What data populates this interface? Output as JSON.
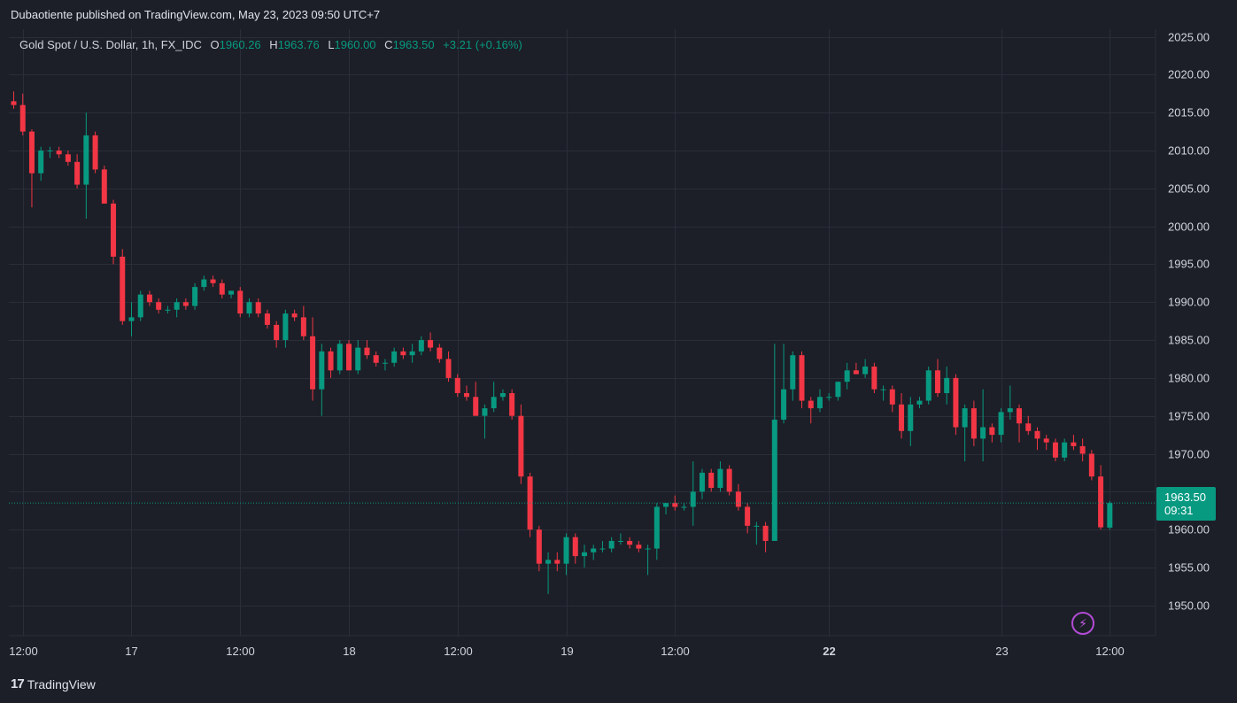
{
  "header": {
    "publisher": "Dubaotiente published on TradingView.com, May 23, 2023 09:50 UTC+7"
  },
  "legend": {
    "symbol": "Gold Spot / U.S. Dollar, 1h, FX_IDC",
    "o_label": "O",
    "o_value": "1960.26",
    "h_label": "H",
    "h_value": "1963.76",
    "l_label": "L",
    "l_value": "1960.00",
    "c_label": "C",
    "c_value": "1963.50",
    "change": "+3.21 (+0.16%)"
  },
  "price_tag": {
    "price": "1963.50",
    "countdown": "09:31"
  },
  "brand": {
    "logo": "17",
    "name": "TradingView"
  },
  "bolt_icon": "lightning-icon",
  "colors": {
    "background": "#1c1f27",
    "grid": "#2a2e39",
    "up": "#089981",
    "down": "#f23645",
    "text": "#d1d4dc"
  },
  "chart_data": {
    "type": "candlestick",
    "ylim": [
      1946,
      2026
    ],
    "y_ticks": [
      2025,
      2020,
      2015,
      2010,
      2005,
      2000,
      1995,
      1990,
      1985,
      1980,
      1975,
      1970,
      1965,
      1960,
      1955,
      1950
    ],
    "y_tick_labels": [
      "2025.00",
      "2020.00",
      "2015.00",
      "2010.00",
      "2005.00",
      "2000.00",
      "1995.00",
      "1990.00",
      "1985.00",
      "1980.00",
      "1975.00",
      "1970.00",
      "1965.00",
      "1960.00",
      "1955.00",
      "1950.00"
    ],
    "x_ticks": [
      {
        "index": 1,
        "label": "12:00",
        "bold": false
      },
      {
        "index": 13,
        "label": "17",
        "bold": false
      },
      {
        "index": 25,
        "label": "12:00",
        "bold": false
      },
      {
        "index": 37,
        "label": "18",
        "bold": false
      },
      {
        "index": 49,
        "label": "12:00",
        "bold": false
      },
      {
        "index": 61,
        "label": "19",
        "bold": false
      },
      {
        "index": 73,
        "label": "12:00",
        "bold": false
      },
      {
        "index": 90,
        "label": "22",
        "bold": true
      },
      {
        "index": 109,
        "label": "23",
        "bold": false
      },
      {
        "index": 121,
        "label": "12:00",
        "bold": false
      }
    ],
    "last_price": 1963.5,
    "candles": [
      [
        2016.5,
        2017.8,
        2015.5,
        2016.0
      ],
      [
        2016.0,
        2017.5,
        2012.0,
        2012.5
      ],
      [
        2012.5,
        2012.8,
        2002.5,
        2007.0
      ],
      [
        2007.0,
        2010.5,
        2006.0,
        2010.0
      ],
      [
        2010.0,
        2010.5,
        2009.0,
        2010.0
      ],
      [
        2010.0,
        2010.5,
        2009.0,
        2009.5
      ],
      [
        2009.5,
        2010.0,
        2008.0,
        2008.5
      ],
      [
        2008.5,
        2009.5,
        2005.0,
        2005.5
      ],
      [
        2005.5,
        2015.0,
        2001.0,
        2012.0
      ],
      [
        2012.0,
        2012.5,
        2007.0,
        2007.5
      ],
      [
        2007.5,
        2008.0,
        2003.0,
        2003.0
      ],
      [
        2003.0,
        2003.5,
        1995.0,
        1996.0
      ],
      [
        1996.0,
        1997.0,
        1987.0,
        1987.5
      ],
      [
        1987.5,
        1990.0,
        1985.5,
        1988.0
      ],
      [
        1988.0,
        1991.5,
        1987.5,
        1991.0
      ],
      [
        1991.0,
        1991.5,
        1989.5,
        1990.0
      ],
      [
        1990.0,
        1990.5,
        1988.5,
        1989.0
      ],
      [
        1989.0,
        1989.5,
        1988.5,
        1989.0
      ],
      [
        1989.0,
        1990.5,
        1988.0,
        1990.0
      ],
      [
        1990.0,
        1990.5,
        1989.0,
        1989.5
      ],
      [
        1989.5,
        1992.5,
        1989.0,
        1992.0
      ],
      [
        1992.0,
        1993.5,
        1991.5,
        1993.0
      ],
      [
        1993.0,
        1993.5,
        1992.0,
        1992.5
      ],
      [
        1992.5,
        1993.0,
        1990.5,
        1991.0
      ],
      [
        1991.0,
        1991.5,
        1990.5,
        1991.5
      ],
      [
        1991.5,
        1992.0,
        1988.0,
        1988.5
      ],
      [
        1988.5,
        1990.5,
        1988.0,
        1990.0
      ],
      [
        1990.0,
        1990.5,
        1988.0,
        1988.5
      ],
      [
        1988.5,
        1989.0,
        1986.5,
        1987.0
      ],
      [
        1987.0,
        1987.5,
        1984.0,
        1985.0
      ],
      [
        1985.0,
        1989.0,
        1984.0,
        1988.5
      ],
      [
        1988.5,
        1989.0,
        1987.5,
        1988.0
      ],
      [
        1988.0,
        1989.5,
        1985.0,
        1985.5
      ],
      [
        1985.5,
        1988.0,
        1977.0,
        1978.5
      ],
      [
        1978.5,
        1984.5,
        1975.0,
        1983.5
      ],
      [
        1983.5,
        1984.0,
        1980.0,
        1981.0
      ],
      [
        1981.0,
        1985.0,
        1980.5,
        1984.5
      ],
      [
        1984.5,
        1985.0,
        1981.0,
        1981.0
      ],
      [
        1981.0,
        1985.0,
        1980.5,
        1984.0
      ],
      [
        1984.0,
        1985.0,
        1982.5,
        1983.0
      ],
      [
        1983.0,
        1983.5,
        1981.5,
        1982.0
      ],
      [
        1982.0,
        1982.5,
        1981.0,
        1982.0
      ],
      [
        1982.0,
        1984.0,
        1981.5,
        1983.5
      ],
      [
        1983.5,
        1984.0,
        1982.5,
        1983.0
      ],
      [
        1983.0,
        1984.5,
        1982.0,
        1983.5
      ],
      [
        1983.5,
        1985.5,
        1983.0,
        1985.0
      ],
      [
        1985.0,
        1986.0,
        1983.5,
        1984.0
      ],
      [
        1984.0,
        1984.5,
        1982.0,
        1982.5
      ],
      [
        1982.5,
        1983.5,
        1979.5,
        1980.0
      ],
      [
        1980.0,
        1980.5,
        1977.5,
        1978.0
      ],
      [
        1978.0,
        1979.0,
        1977.0,
        1977.5
      ],
      [
        1977.5,
        1979.5,
        1975.0,
        1975.0
      ],
      [
        1975.0,
        1976.5,
        1972.0,
        1976.0
      ],
      [
        1976.0,
        1979.5,
        1975.5,
        1977.5
      ],
      [
        1977.5,
        1978.5,
        1977.0,
        1978.0
      ],
      [
        1978.0,
        1978.5,
        1974.5,
        1975.0
      ],
      [
        1975.0,
        1976.5,
        1966.0,
        1967.0
      ],
      [
        1967.0,
        1967.5,
        1959.0,
        1960.0
      ],
      [
        1960.0,
        1960.5,
        1954.5,
        1955.5
      ],
      [
        1955.5,
        1957.0,
        1951.5,
        1956.0
      ],
      [
        1956.0,
        1957.0,
        1954.5,
        1955.5
      ],
      [
        1955.5,
        1959.5,
        1954.0,
        1959.0
      ],
      [
        1959.0,
        1959.5,
        1955.5,
        1956.5
      ],
      [
        1956.5,
        1958.0,
        1955.0,
        1957.0
      ],
      [
        1957.0,
        1958.0,
        1956.0,
        1957.5
      ],
      [
        1957.5,
        1958.5,
        1957.0,
        1957.5
      ],
      [
        1957.5,
        1959.0,
        1957.0,
        1958.5
      ],
      [
        1958.5,
        1959.5,
        1958.0,
        1958.5
      ],
      [
        1958.5,
        1959.0,
        1957.5,
        1958.0
      ],
      [
        1958.0,
        1958.5,
        1957.0,
        1957.5
      ],
      [
        1957.5,
        1958.0,
        1954.0,
        1957.5
      ],
      [
        1957.5,
        1963.5,
        1956.0,
        1963.0
      ],
      [
        1963.0,
        1963.5,
        1962.0,
        1963.5
      ],
      [
        1963.5,
        1964.5,
        1962.5,
        1963.0
      ],
      [
        1963.0,
        1963.5,
        1962.5,
        1963.0
      ],
      [
        1963.0,
        1969.0,
        1960.5,
        1965.0
      ],
      [
        1965.0,
        1968.0,
        1964.0,
        1967.5
      ],
      [
        1967.5,
        1968.0,
        1965.0,
        1965.5
      ],
      [
        1965.5,
        1969.0,
        1965.0,
        1968.0
      ],
      [
        1968.0,
        1968.5,
        1964.5,
        1965.0
      ],
      [
        1965.0,
        1966.0,
        1962.5,
        1963.0
      ],
      [
        1963.0,
        1963.5,
        1959.5,
        1960.5
      ],
      [
        1960.5,
        1961.0,
        1958.0,
        1960.5
      ],
      [
        1960.5,
        1961.0,
        1957.0,
        1958.5
      ],
      [
        1958.5,
        1984.5,
        1958.5,
        1974.5
      ],
      [
        1974.5,
        1984.5,
        1974.0,
        1978.5
      ],
      [
        1978.5,
        1983.5,
        1977.0,
        1983.0
      ],
      [
        1983.0,
        1983.5,
        1976.0,
        1977.0
      ],
      [
        1977.0,
        1977.5,
        1974.0,
        1976.0
      ],
      [
        1976.0,
        1978.5,
        1975.5,
        1977.5
      ],
      [
        1977.5,
        1978.0,
        1977.0,
        1977.5
      ],
      [
        1977.5,
        1979.5,
        1977.0,
        1979.5
      ],
      [
        1979.5,
        1982.0,
        1978.5,
        1981.0
      ],
      [
        1981.0,
        1982.0,
        1980.5,
        1980.5
      ],
      [
        1980.5,
        1982.5,
        1980.0,
        1981.5
      ],
      [
        1981.5,
        1982.0,
        1978.0,
        1978.5
      ],
      [
        1978.5,
        1979.0,
        1977.0,
        1978.5
      ],
      [
        1978.5,
        1979.0,
        1975.5,
        1976.5
      ],
      [
        1976.5,
        1978.0,
        1972.0,
        1973.0
      ],
      [
        1973.0,
        1977.5,
        1971.0,
        1976.5
      ],
      [
        1976.5,
        1977.5,
        1976.0,
        1977.0
      ],
      [
        1977.0,
        1981.5,
        1976.5,
        1981.0
      ],
      [
        1981.0,
        1982.5,
        1977.5,
        1978.0
      ],
      [
        1978.0,
        1981.5,
        1976.5,
        1980.0
      ],
      [
        1980.0,
        1980.5,
        1972.5,
        1973.5
      ],
      [
        1973.5,
        1976.5,
        1969.0,
        1976.0
      ],
      [
        1976.0,
        1977.0,
        1971.0,
        1972.0
      ],
      [
        1972.0,
        1978.5,
        1969.0,
        1973.5
      ],
      [
        1973.5,
        1974.0,
        1971.5,
        1972.5
      ],
      [
        1972.5,
        1976.0,
        1971.5,
        1975.5
      ],
      [
        1975.5,
        1979.0,
        1974.5,
        1976.0
      ],
      [
        1976.0,
        1976.5,
        1971.5,
        1974.0
      ],
      [
        1974.0,
        1975.0,
        1972.5,
        1973.0
      ],
      [
        1973.0,
        1973.5,
        1970.5,
        1972.0
      ],
      [
        1972.0,
        1972.5,
        1970.5,
        1971.5
      ],
      [
        1971.5,
        1972.0,
        1969.0,
        1969.5
      ],
      [
        1969.5,
        1972.0,
        1969.0,
        1971.5
      ],
      [
        1971.5,
        1972.5,
        1970.5,
        1971.0
      ],
      [
        1971.0,
        1972.0,
        1969.0,
        1970.0
      ],
      [
        1970.0,
        1970.5,
        1966.5,
        1967.0
      ],
      [
        1967.0,
        1968.5,
        1960.0,
        1960.3
      ],
      [
        1960.26,
        1963.76,
        1960.0,
        1963.5
      ]
    ]
  }
}
